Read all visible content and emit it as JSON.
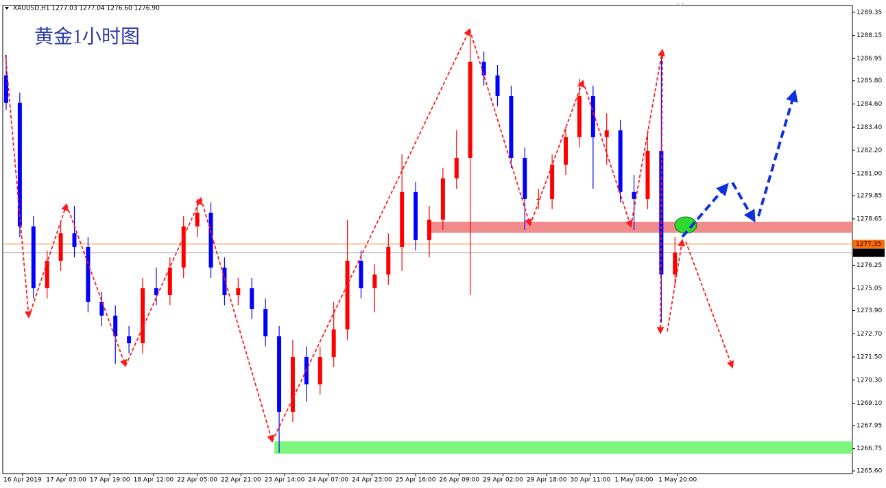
{
  "chart_data": {
    "type": "candlestick",
    "header": "XAUUSD,H1  1277.03 1277.04 1276.60 1276.90",
    "title": "黄金1小时图",
    "x": [
      0,
      5,
      10,
      15,
      20,
      25,
      30,
      35,
      40,
      45,
      50,
      55,
      60,
      65,
      70,
      75,
      80,
      85,
      90,
      95,
      100,
      105,
      110,
      115,
      120,
      125,
      130,
      135,
      140,
      145,
      150,
      155,
      160,
      165,
      170,
      175,
      180,
      185,
      190,
      195,
      200,
      205,
      210,
      215,
      220,
      225,
      230,
      235,
      240,
      245
    ],
    "open": [
      1286.08,
      1284.66,
      1278.26,
      1275.06,
      1276.48,
      1277.9,
      1277.19,
      1274.35,
      1273.64,
      1272.57,
      1272.21,
      1275.06,
      1274.7,
      1276.13,
      1278.26,
      1278.97,
      1276.13,
      1274.7,
      1275.06,
      1273.99,
      1272.57,
      1268.66,
      1271.5,
      1270.08,
      1271.5,
      1272.93,
      1276.48,
      1275.06,
      1275.77,
      1277.19,
      1280.04,
      1277.55,
      1278.61,
      1280.75,
      1281.81,
      1286.79,
      1286.08,
      1285.01,
      1281.81,
      1279.68,
      1279.68,
      1281.46,
      1282.88,
      1285.01,
      1282.88,
      1283.24,
      1280.04,
      1279.68,
      1282.17,
      1275.77
    ],
    "high": [
      1287.15,
      1285.19,
      1278.79,
      1277.01,
      1278.43,
      1279.32,
      1277.72,
      1274.88,
      1274.17,
      1273.1,
      1275.59,
      1276.13,
      1276.66,
      1278.79,
      1279.68,
      1279.5,
      1276.66,
      1275.59,
      1275.59,
      1274.53,
      1273.1,
      1272.39,
      1272.04,
      1272.04,
      1274.35,
      1278.61,
      1277.01,
      1276.3,
      1277.9,
      1281.99,
      1280.57,
      1279.32,
      1281.28,
      1283.24,
      1288.39,
      1287.32,
      1286.61,
      1285.55,
      1282.35,
      1280.21,
      1281.99,
      1283.41,
      1285.9,
      1285.55,
      1284.12,
      1283.77,
      1280.92,
      1283.24,
      1287.32,
      1277.72
    ],
    "low": [
      1284.3,
      1277.72,
      1274.53,
      1274.53,
      1275.95,
      1276.66,
      1273.81,
      1273.1,
      1271.15,
      1271.68,
      1271.68,
      1274.17,
      1274.17,
      1275.59,
      1277.72,
      1275.59,
      1274.17,
      1274.17,
      1273.46,
      1272.04,
      1266.53,
      1268.13,
      1269.19,
      1269.55,
      1270.97,
      1272.39,
      1274.53,
      1273.81,
      1275.24,
      1275.95,
      1277.01,
      1276.66,
      1278.08,
      1280.21,
      1274.7,
      1285.55,
      1284.48,
      1281.28,
      1278.08,
      1279.15,
      1279.15,
      1280.92,
      1282.35,
      1280.21,
      1281.46,
      1279.5,
      1278.08,
      1279.15,
      1273.28,
      1275.24
    ],
    "close": [
      1284.66,
      1278.26,
      1275.06,
      1276.48,
      1277.9,
      1277.19,
      1274.35,
      1273.64,
      1272.57,
      1272.21,
      1275.06,
      1274.7,
      1276.13,
      1278.26,
      1278.97,
      1276.13,
      1274.7,
      1275.06,
      1273.99,
      1272.57,
      1268.66,
      1271.5,
      1270.08,
      1271.5,
      1272.93,
      1276.48,
      1275.06,
      1275.77,
      1277.19,
      1280.04,
      1277.55,
      1278.61,
      1280.75,
      1281.81,
      1286.79,
      1286.08,
      1285.01,
      1281.81,
      1279.68,
      1279.68,
      1281.46,
      1282.88,
      1285.01,
      1282.88,
      1283.24,
      1280.04,
      1279.68,
      1282.17,
      1275.77,
      1276.91
    ],
    "up_color": "#ff0000",
    "down_color": "#0000ff",
    "xlim": [
      -1,
      310
    ],
    "ylim": [
      1265.46,
      1289.7
    ],
    "xticks": [
      {
        "value": 6,
        "label": "16 Apr 2019"
      },
      {
        "value": 22,
        "label": "17 Apr 03:00"
      },
      {
        "value": 38,
        "label": "17 Apr 19:00"
      },
      {
        "value": 54,
        "label": "18 Apr 12:00"
      },
      {
        "value": 70,
        "label": "22 Apr 05:00"
      },
      {
        "value": 86,
        "label": "22 Apr 21:00"
      },
      {
        "value": 102,
        "label": "23 Apr 14:00"
      },
      {
        "value": 118,
        "label": "24 Apr 07:00"
      },
      {
        "value": 134,
        "label": "24 Apr 23:00"
      },
      {
        "value": 150,
        "label": "25 Apr 16:00"
      },
      {
        "value": 166,
        "label": "26 Apr 09:00"
      },
      {
        "value": 182,
        "label": "29 Apr 02:00"
      },
      {
        "value": 198,
        "label": "29 Apr 18:00"
      },
      {
        "value": 214,
        "label": "30 Apr 11:00"
      },
      {
        "value": 230,
        "label": "1 May 04:00"
      },
      {
        "value": 246,
        "label": "1 May 20:00"
      }
    ],
    "yticks": [
      1289.35,
      1288.15,
      1286.95,
      {
        "value": 1285.8,
        "label": "1285.80"
      },
      {
        "value": 1284.6,
        "label": "1284.60"
      },
      {
        "value": 1283.4,
        "label": "1283.40"
      },
      {
        "value": 1282.2,
        "label": "1282.20"
      },
      {
        "value": 1281,
        "label": "1281.00"
      },
      1279.85,
      1278.65,
      1276.25,
      1275.05,
      {
        "value": 1273.9,
        "label": "1273.90"
      },
      {
        "value": 1272.7,
        "label": "1272.70"
      },
      {
        "value": 1271.5,
        "label": "1271.50"
      },
      {
        "value": 1270.3,
        "label": "1270.30"
      },
      {
        "value": 1269.1,
        "label": "1269.10"
      },
      1267.95,
      1266.75,
      {
        "value": 1265.6,
        "label": "1265.60"
      }
    ],
    "price_lines": [
      {
        "value": 1277.35,
        "color": "#ff6a00"
      },
      {
        "value": {
          "value": 1276.9,
          "label": "1276.90"
        },
        "color": "#9a9a9a"
      }
    ]
  }
}
